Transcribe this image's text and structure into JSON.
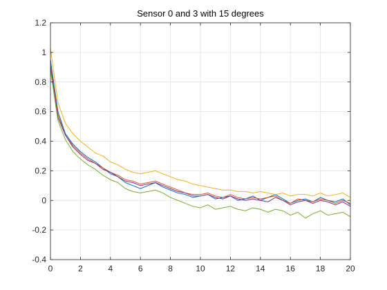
{
  "chart_data": {
    "type": "line",
    "title": "Sensor 0 and 3 with 15 degrees",
    "xlabel": "",
    "ylabel": "",
    "xlim": [
      0,
      20
    ],
    "ylim": [
      -0.4,
      1.2
    ],
    "xticks": [
      0,
      2,
      4,
      6,
      8,
      10,
      12,
      14,
      16,
      18,
      20
    ],
    "yticks": [
      -0.4,
      -0.2,
      0,
      0.2,
      0.4,
      0.6,
      0.8,
      1,
      1.2
    ],
    "xtick_labels": [
      "0",
      "2",
      "4",
      "6",
      "8",
      "10",
      "12",
      "14",
      "16",
      "18",
      "20"
    ],
    "ytick_labels": [
      "-0.4",
      "-0.2",
      "0",
      "0.2",
      "0.4",
      "0.6",
      "0.8",
      "1",
      "1.2"
    ],
    "grid": true,
    "legend": "none",
    "x": [
      0,
      0.5,
      1,
      1.5,
      2,
      2.5,
      3,
      3.5,
      4,
      4.5,
      5,
      5.5,
      6,
      6.5,
      7,
      7.5,
      8,
      8.5,
      9,
      9.5,
      10,
      10.5,
      11,
      11.5,
      12,
      12.5,
      13,
      13.5,
      14,
      14.5,
      15,
      15.5,
      16,
      16.5,
      17,
      17.5,
      18,
      18.5,
      19,
      19.5,
      20
    ],
    "series": [
      {
        "color": "#0072BD",
        "values": [
          0.95,
          0.6,
          0.45,
          0.38,
          0.33,
          0.29,
          0.26,
          0.22,
          0.18,
          0.16,
          0.12,
          0.1,
          0.08,
          0.1,
          0.12,
          0.09,
          0.07,
          0.05,
          0.04,
          0.02,
          0.03,
          0.04,
          0.01,
          0.02,
          0.03,
          0.0,
          0.01,
          0.03,
          0.0,
          0.02,
          0.04,
          0.01,
          -0.02,
          0.0,
          0.01,
          -0.01,
          0.02,
          0.0,
          -0.01,
          0.01,
          -0.03
        ]
      },
      {
        "color": "#D95319",
        "values": [
          0.92,
          0.58,
          0.44,
          0.37,
          0.32,
          0.28,
          0.25,
          0.22,
          0.19,
          0.17,
          0.14,
          0.13,
          0.11,
          0.12,
          0.13,
          0.11,
          0.09,
          0.07,
          0.05,
          0.04,
          0.04,
          0.05,
          0.03,
          0.02,
          0.04,
          0.02,
          0.01,
          0.02,
          0.01,
          0.02,
          0.03,
          0.0,
          -0.02,
          0.01,
          0.0,
          -0.01,
          0.01,
          0.0,
          -0.02,
          0.0,
          -0.02
        ]
      },
      {
        "color": "#EDB120",
        "values": [
          1.03,
          0.66,
          0.52,
          0.45,
          0.4,
          0.36,
          0.32,
          0.3,
          0.26,
          0.24,
          0.21,
          0.19,
          0.18,
          0.19,
          0.2,
          0.18,
          0.16,
          0.14,
          0.13,
          0.11,
          0.1,
          0.09,
          0.08,
          0.07,
          0.07,
          0.06,
          0.06,
          0.05,
          0.06,
          0.05,
          0.04,
          0.05,
          0.03,
          0.04,
          0.04,
          0.03,
          0.05,
          0.03,
          0.04,
          0.05,
          0.02
        ]
      },
      {
        "color": "#7E2F8E",
        "values": [
          0.9,
          0.56,
          0.44,
          0.36,
          0.31,
          0.27,
          0.25,
          0.21,
          0.19,
          0.16,
          0.13,
          0.12,
          0.1,
          0.11,
          0.12,
          0.1,
          0.08,
          0.06,
          0.05,
          0.03,
          0.03,
          0.04,
          0.02,
          0.01,
          0.03,
          0.01,
          0.0,
          0.01,
          0.0,
          -0.01,
          0.02,
          0.0,
          -0.03,
          -0.01,
          0.0,
          -0.02,
          0.0,
          -0.01,
          -0.03,
          -0.01,
          -0.04
        ]
      },
      {
        "color": "#77AC30",
        "values": [
          0.88,
          0.54,
          0.41,
          0.33,
          0.28,
          0.24,
          0.21,
          0.17,
          0.14,
          0.12,
          0.08,
          0.06,
          0.05,
          0.06,
          0.07,
          0.05,
          0.02,
          0.0,
          -0.02,
          -0.04,
          -0.05,
          -0.03,
          -0.06,
          -0.05,
          -0.04,
          -0.06,
          -0.07,
          -0.05,
          -0.06,
          -0.08,
          -0.06,
          -0.07,
          -0.1,
          -0.08,
          -0.12,
          -0.09,
          -0.07,
          -0.1,
          -0.09,
          -0.08,
          -0.11
        ]
      }
    ]
  }
}
